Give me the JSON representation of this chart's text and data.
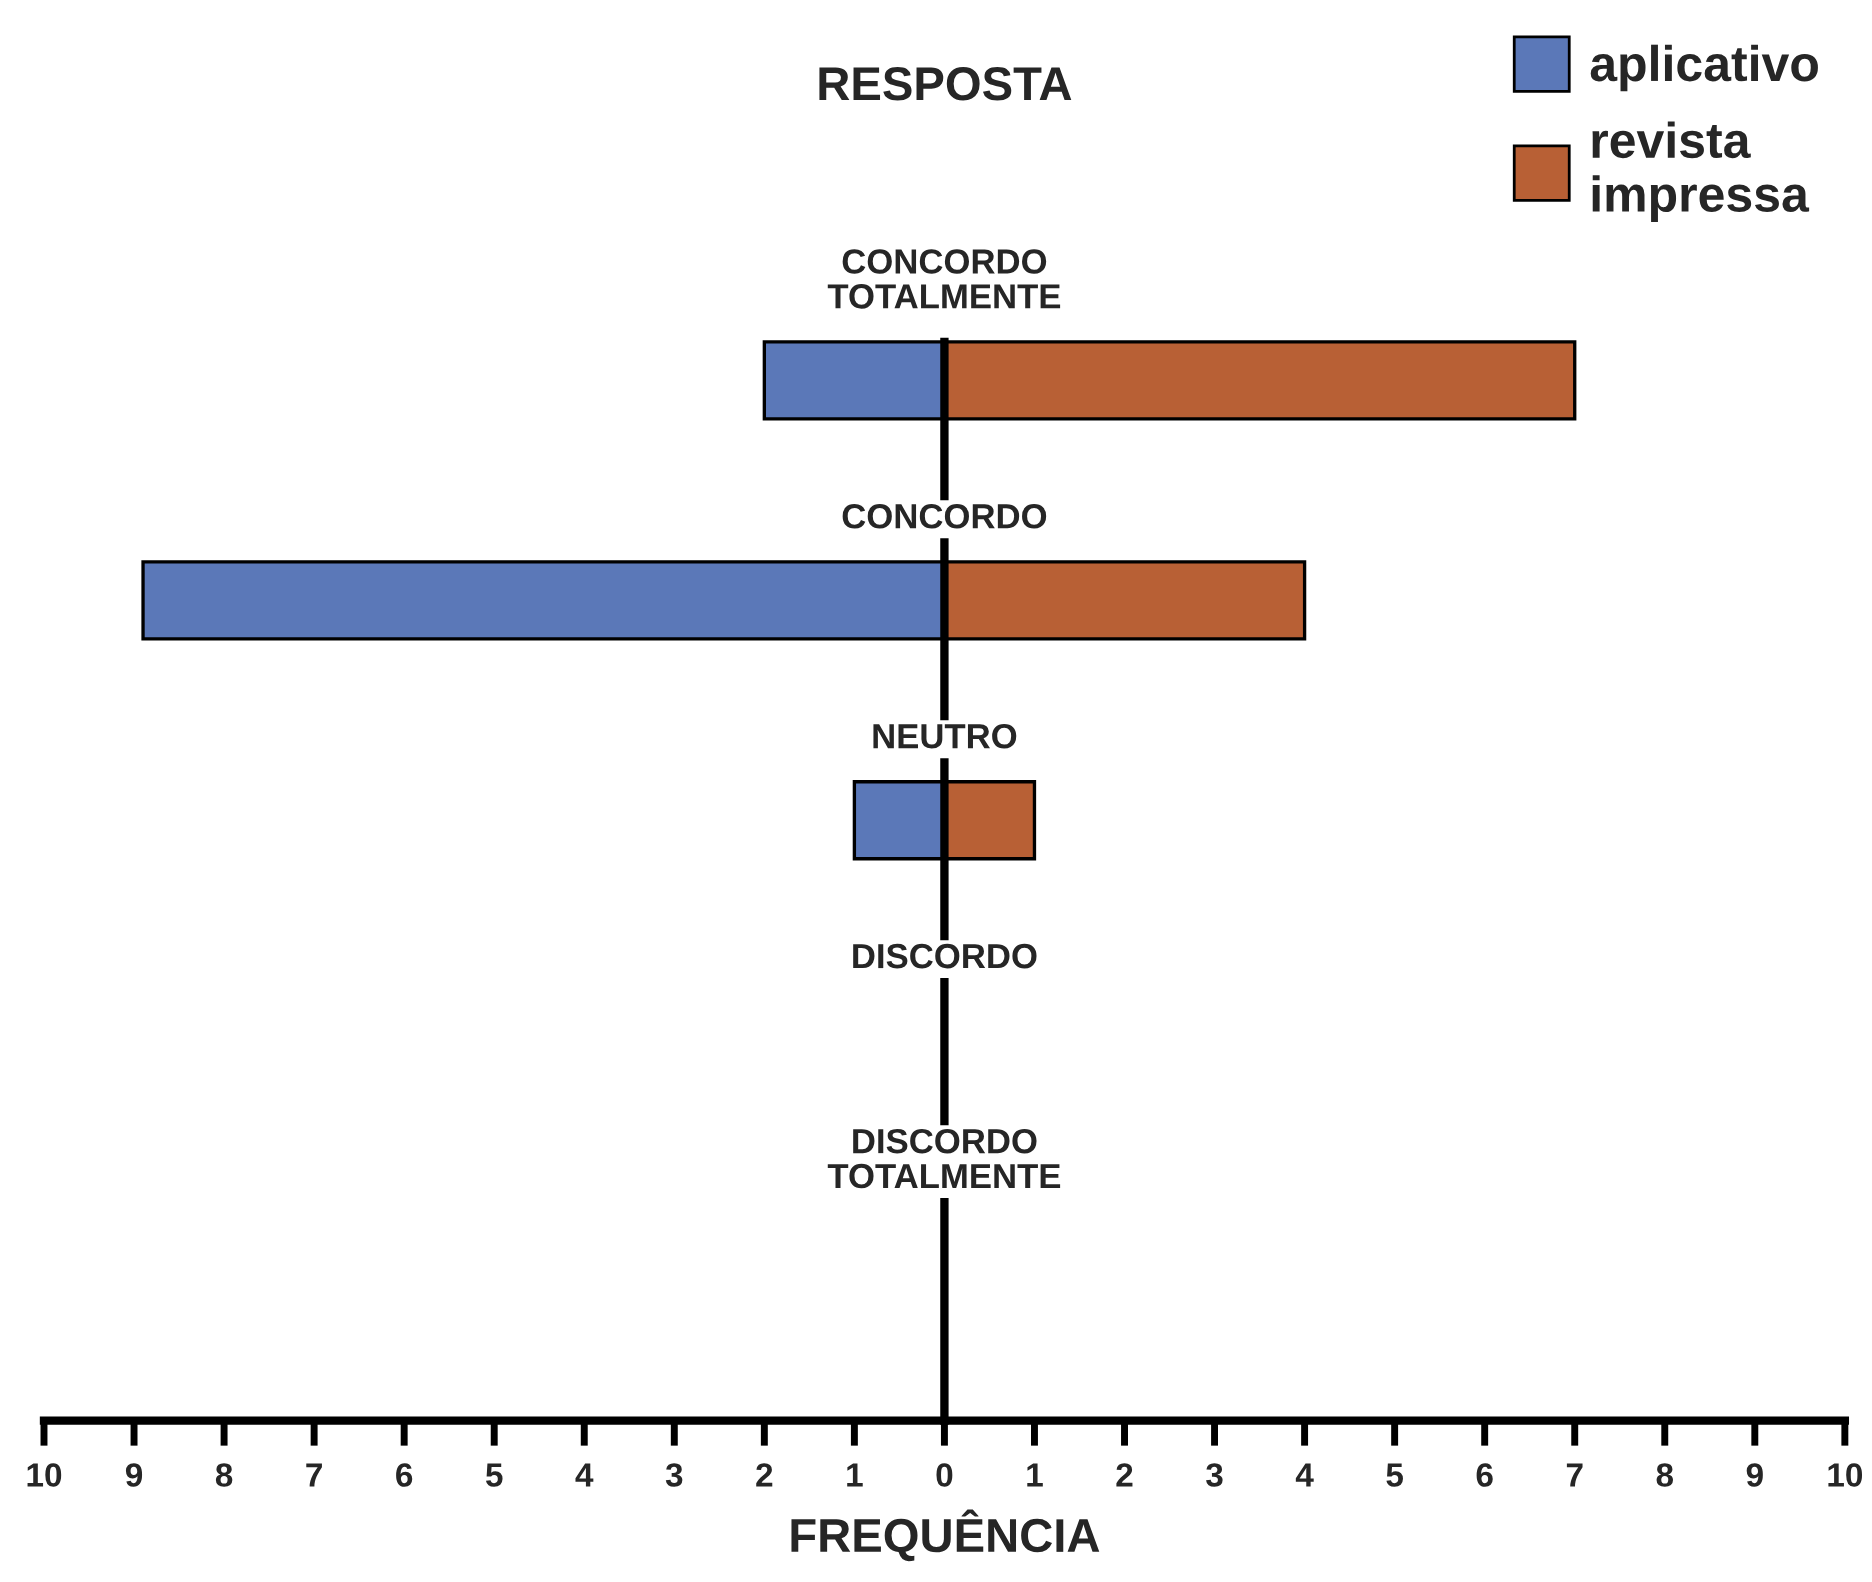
{
  "chart_data": {
    "type": "bar",
    "orientation": "horizontal",
    "stacked": true,
    "ylabel": "RESPOSTA",
    "xlabel": "FREQUÊNCIA",
    "categories": [
      "CONCORDO\nTOTALMENTE",
      "CONCORDO",
      "NEUTRO",
      "DISCORDO",
      "DISCORDO\nTOTALMENTE"
    ],
    "series": [
      {
        "name": "aplicativo",
        "color": "#5b78b8",
        "values": [
          -2,
          -8.9,
          -1,
          0,
          0
        ]
      },
      {
        "name": "revista\nimpressa",
        "color": "#b86035",
        "values": [
          7,
          4,
          1,
          0,
          0
        ]
      }
    ],
    "xlim": [
      -10,
      10
    ],
    "xticks": [
      {
        "value": -10,
        "label": "10"
      },
      {
        "value": -9,
        "label": "9"
      },
      {
        "value": -8,
        "label": "8"
      },
      {
        "value": -7,
        "label": "7"
      },
      {
        "value": -6,
        "label": "6"
      },
      {
        "value": -5,
        "label": "5"
      },
      {
        "value": -4,
        "label": "4"
      },
      {
        "value": -3,
        "label": "3"
      },
      {
        "value": -2,
        "label": "2"
      },
      {
        "value": -1,
        "label": "1"
      },
      0,
      1,
      2,
      3,
      4,
      5,
      6,
      7,
      8,
      9,
      10
    ],
    "legend": "top right",
    "grid": false
  }
}
